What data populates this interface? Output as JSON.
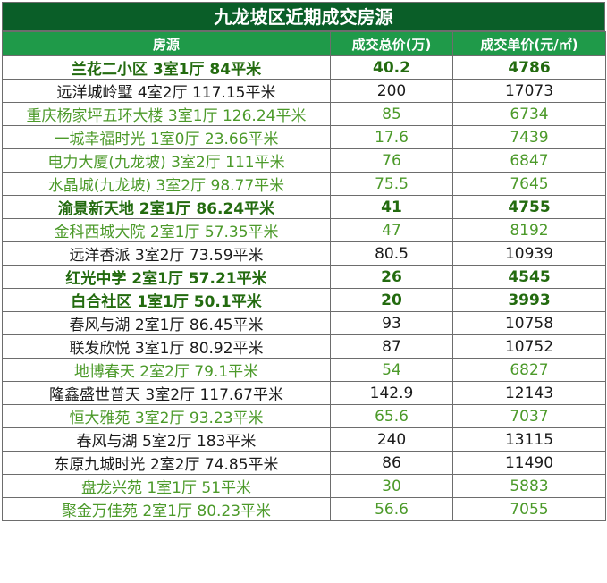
{
  "title": "九龙坡区近期成交房源",
  "headers": [
    "房源",
    "成交总价(万)",
    "成交单价(元/㎡)"
  ],
  "rows": [
    {
      "name": "兰花二小区 3室1厅 84平米",
      "total": "40.2",
      "unit": "4786",
      "style": "boldgreen"
    },
    {
      "name": "远洋城岭墅 4室2厅 117.15平米",
      "total": "200",
      "unit": "17073",
      "style": "black"
    },
    {
      "name": "重庆杨家坪五环大楼 3室1厅 126.24平米",
      "total": "85",
      "unit": "6734",
      "style": "lightgreen"
    },
    {
      "name": "一城幸福时光 1室0厅 23.66平米",
      "total": "17.6",
      "unit": "7439",
      "style": "lightgreen"
    },
    {
      "name": "电力大厦(九龙坡) 3室2厅 111平米",
      "total": "76",
      "unit": "6847",
      "style": "lightgreen"
    },
    {
      "name": "水晶城(九龙坡) 3室2厅 98.77平米",
      "total": "75.5",
      "unit": "7645",
      "style": "lightgreen"
    },
    {
      "name": "渝景新天地 2室1厅 86.24平米",
      "total": "41",
      "unit": "4755",
      "style": "boldgreen"
    },
    {
      "name": "金科西城大院 2室1厅 57.35平米",
      "total": "47",
      "unit": "8192",
      "style": "lightgreen"
    },
    {
      "name": "远洋香派 3室2厅 73.59平米",
      "total": "80.5",
      "unit": "10939",
      "style": "black"
    },
    {
      "name": "红光中学 2室1厅 57.21平米",
      "total": "26",
      "unit": "4545",
      "style": "boldgreen"
    },
    {
      "name": "白合社区 1室1厅 50.1平米",
      "total": "20",
      "unit": "3993",
      "style": "boldgreen"
    },
    {
      "name": "春风与湖 2室1厅 86.45平米",
      "total": "93",
      "unit": "10758",
      "style": "black"
    },
    {
      "name": "联发欣悦 3室1厅 80.92平米",
      "total": "87",
      "unit": "10752",
      "style": "black"
    },
    {
      "name": "地博春天 2室2厅 79.1平米",
      "total": "54",
      "unit": "6827",
      "style": "lightgreen"
    },
    {
      "name": "隆鑫盛世普天 3室2厅 117.67平米",
      "total": "142.9",
      "unit": "12143",
      "style": "black"
    },
    {
      "name": "恒大雅苑 3室2厅 93.23平米",
      "total": "65.6",
      "unit": "7037",
      "style": "lightgreen"
    },
    {
      "name": "春风与湖 5室2厅 183平米",
      "total": "240",
      "unit": "13115",
      "style": "black"
    },
    {
      "name": "东原九城时光 2室2厅 74.85平米",
      "total": "86",
      "unit": "11490",
      "style": "black"
    },
    {
      "name": "盘龙兴苑 1室1厅 51平米",
      "total": "30",
      "unit": "5883",
      "style": "lightgreen"
    },
    {
      "name": "聚金万佳苑 2室1厅 80.23平米",
      "total": "56.6",
      "unit": "7055",
      "style": "lightgreen"
    }
  ]
}
